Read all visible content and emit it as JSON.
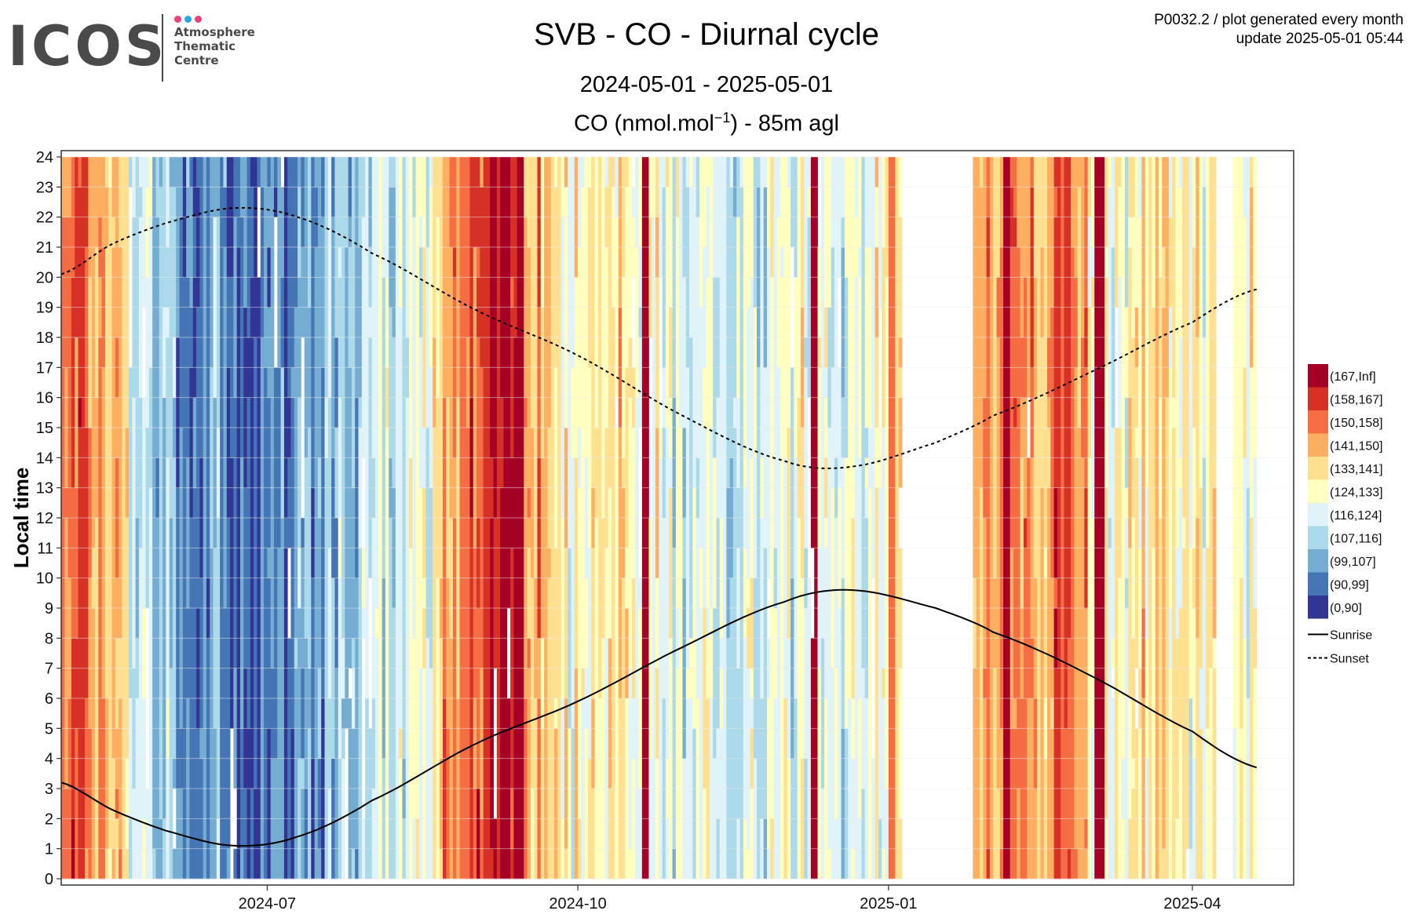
{
  "logo": {
    "mark": "ICOS",
    "lines": [
      "Atmosphere",
      "Thematic",
      "Centre"
    ],
    "dot_colors": [
      "#e8417c",
      "#2aa6e0",
      "#e8417c"
    ]
  },
  "header": {
    "title": "SVB - CO - Diurnal cycle",
    "period": "2024-05-01 - 2025-05-01",
    "subtitle_prefix": "CO (nmol.mol",
    "subtitle_exp": "−1",
    "subtitle_suffix": ") - 85m agl",
    "meta_line1": "P0032.2 / plot generated every month",
    "meta_line2": "update  2025-05-01 05:44"
  },
  "chart_data": {
    "type": "heatmap",
    "x_range": [
      "2024-05-01",
      "2025-05-01"
    ],
    "x_ticks": [
      {
        "date": "2024-07-01",
        "label": "2024-07"
      },
      {
        "date": "2024-10-01",
        "label": "2024-10"
      },
      {
        "date": "2025-01-01",
        "label": "2025-01"
      },
      {
        "date": "2025-04-01",
        "label": "2025-04"
      }
    ],
    "ylabel": "Local time",
    "ylim": [
      0,
      24
    ],
    "y_ticks": [
      0,
      1,
      2,
      3,
      4,
      5,
      6,
      7,
      8,
      9,
      10,
      11,
      12,
      13,
      14,
      15,
      16,
      17,
      18,
      19,
      20,
      21,
      22,
      23,
      24
    ],
    "grid": true,
    "legend_position": "right",
    "legend_bins": [
      {
        "label": "(167,Inf]",
        "color": "#a50026"
      },
      {
        "label": "(158,167]",
        "color": "#d73027"
      },
      {
        "label": "(150,158]",
        "color": "#f46d43"
      },
      {
        "label": "(141,150]",
        "color": "#fdae61"
      },
      {
        "label": "(133,141]",
        "color": "#fee090"
      },
      {
        "label": "(124,133]",
        "color": "#ffffbf"
      },
      {
        "label": "(116,124]",
        "color": "#e0f3f8"
      },
      {
        "label": "(107,116]",
        "color": "#abd9e9"
      },
      {
        "label": "(99,107]",
        "color": "#74add1"
      },
      {
        "label": "(90,99]",
        "color": "#4575b4"
      },
      {
        "label": "(0,90]",
        "color": "#313695"
      }
    ],
    "lines_legend": [
      {
        "label": "Sunrise",
        "style": "solid"
      },
      {
        "label": "Sunset",
        "style": "dashed"
      }
    ],
    "data_end": "2025-04-20",
    "gaps": [
      [
        "2025-01-05",
        "2025-01-26"
      ],
      [
        "2025-04-08",
        "2025-04-13"
      ]
    ],
    "periods": [
      {
        "start": "2024-05-01",
        "end": "2024-05-08",
        "bin": 2
      },
      {
        "start": "2024-05-08",
        "end": "2024-05-14",
        "bin": 3
      },
      {
        "start": "2024-05-14",
        "end": "2024-05-21",
        "bin": 4
      },
      {
        "start": "2024-05-21",
        "end": "2024-05-27",
        "bin": 6
      },
      {
        "start": "2024-05-27",
        "end": "2024-06-02",
        "bin": 7
      },
      {
        "start": "2024-06-02",
        "end": "2024-06-08",
        "bin": 8
      },
      {
        "start": "2024-06-08",
        "end": "2024-06-18",
        "bin": 8
      },
      {
        "start": "2024-06-18",
        "end": "2024-06-26",
        "bin": 9
      },
      {
        "start": "2024-06-26",
        "end": "2024-07-08",
        "bin": 9
      },
      {
        "start": "2024-07-08",
        "end": "2024-07-18",
        "bin": 8
      },
      {
        "start": "2024-07-18",
        "end": "2024-07-28",
        "bin": 7
      },
      {
        "start": "2024-07-28",
        "end": "2024-08-05",
        "bin": 6
      },
      {
        "start": "2024-08-05",
        "end": "2024-08-15",
        "bin": 6
      },
      {
        "start": "2024-08-15",
        "end": "2024-08-22",
        "bin": 5
      },
      {
        "start": "2024-08-22",
        "end": "2024-08-30",
        "bin": 3
      },
      {
        "start": "2024-08-30",
        "end": "2024-09-05",
        "bin": 2
      },
      {
        "start": "2024-09-05",
        "end": "2024-09-15",
        "bin": 0
      },
      {
        "start": "2024-09-15",
        "end": "2024-09-25",
        "bin": 3
      },
      {
        "start": "2024-09-25",
        "end": "2024-10-05",
        "bin": 5
      },
      {
        "start": "2024-10-05",
        "end": "2024-10-15",
        "bin": 4
      },
      {
        "start": "2024-10-15",
        "end": "2024-10-25",
        "bin": 5
      },
      {
        "start": "2024-10-25",
        "end": "2024-11-05",
        "bin": 6
      },
      {
        "start": "2024-11-05",
        "end": "2024-11-20",
        "bin": 6
      },
      {
        "start": "2024-11-20",
        "end": "2024-12-05",
        "bin": 6
      },
      {
        "start": "2024-12-05",
        "end": "2024-12-15",
        "bin": 5
      },
      {
        "start": "2024-12-15",
        "end": "2024-12-28",
        "bin": 6
      },
      {
        "start": "2024-12-28",
        "end": "2025-01-05",
        "bin": 5
      },
      {
        "start": "2025-01-26",
        "end": "2025-02-05",
        "bin": 3
      },
      {
        "start": "2025-02-05",
        "end": "2025-02-18",
        "bin": 3
      },
      {
        "start": "2025-02-18",
        "end": "2025-03-01",
        "bin": 2
      },
      {
        "start": "2025-03-01",
        "end": "2025-03-15",
        "bin": 5
      },
      {
        "start": "2025-03-15",
        "end": "2025-03-25",
        "bin": 4
      },
      {
        "start": "2025-03-25",
        "end": "2025-04-08",
        "bin": 5
      },
      {
        "start": "2025-04-13",
        "end": "2025-04-20",
        "bin": 5
      }
    ],
    "spikes": [
      {
        "start": "2024-10-20",
        "end": "2024-10-22",
        "bin": 0
      },
      {
        "start": "2024-12-09",
        "end": "2024-12-11",
        "bin": 0
      },
      {
        "start": "2025-02-04",
        "end": "2025-02-06",
        "bin": 0
      },
      {
        "start": "2025-03-03",
        "end": "2025-03-06",
        "bin": 0
      },
      {
        "start": "2024-09-03",
        "end": "2024-09-05",
        "bin": 1
      },
      {
        "start": "2024-08-27",
        "end": "2024-08-29",
        "bin": 2
      },
      {
        "start": "2025-01-01",
        "end": "2025-01-03",
        "bin": 2
      }
    ],
    "sunrise": {
      "name": "Sunrise",
      "dates": [
        "2024-05-01",
        "2024-05-16",
        "2024-06-01",
        "2024-06-21",
        "2024-07-10",
        "2024-08-01",
        "2024-09-01",
        "2024-10-01",
        "2024-11-01",
        "2024-12-01",
        "2024-12-21",
        "2025-01-15",
        "2025-02-01",
        "2025-03-01",
        "2025-04-01",
        "2025-04-20"
      ],
      "hours": [
        3.2,
        2.3,
        1.6,
        1.1,
        1.4,
        2.6,
        4.5,
        5.9,
        7.7,
        9.2,
        9.6,
        9.0,
        8.2,
        6.8,
        4.9,
        3.7
      ]
    },
    "sunset": {
      "name": "Sunset",
      "dates": [
        "2024-05-01",
        "2024-05-16",
        "2024-06-01",
        "2024-06-21",
        "2024-07-10",
        "2024-08-01",
        "2024-09-01",
        "2024-10-01",
        "2024-11-01",
        "2024-12-01",
        "2024-12-21",
        "2025-01-15",
        "2025-02-01",
        "2025-03-01",
        "2025-04-01",
        "2025-04-20"
      ],
      "hours": [
        20.1,
        21.1,
        21.8,
        22.3,
        22.0,
        20.8,
        18.9,
        17.4,
        15.4,
        13.9,
        13.7,
        14.5,
        15.4,
        16.8,
        18.5,
        19.6
      ]
    }
  }
}
